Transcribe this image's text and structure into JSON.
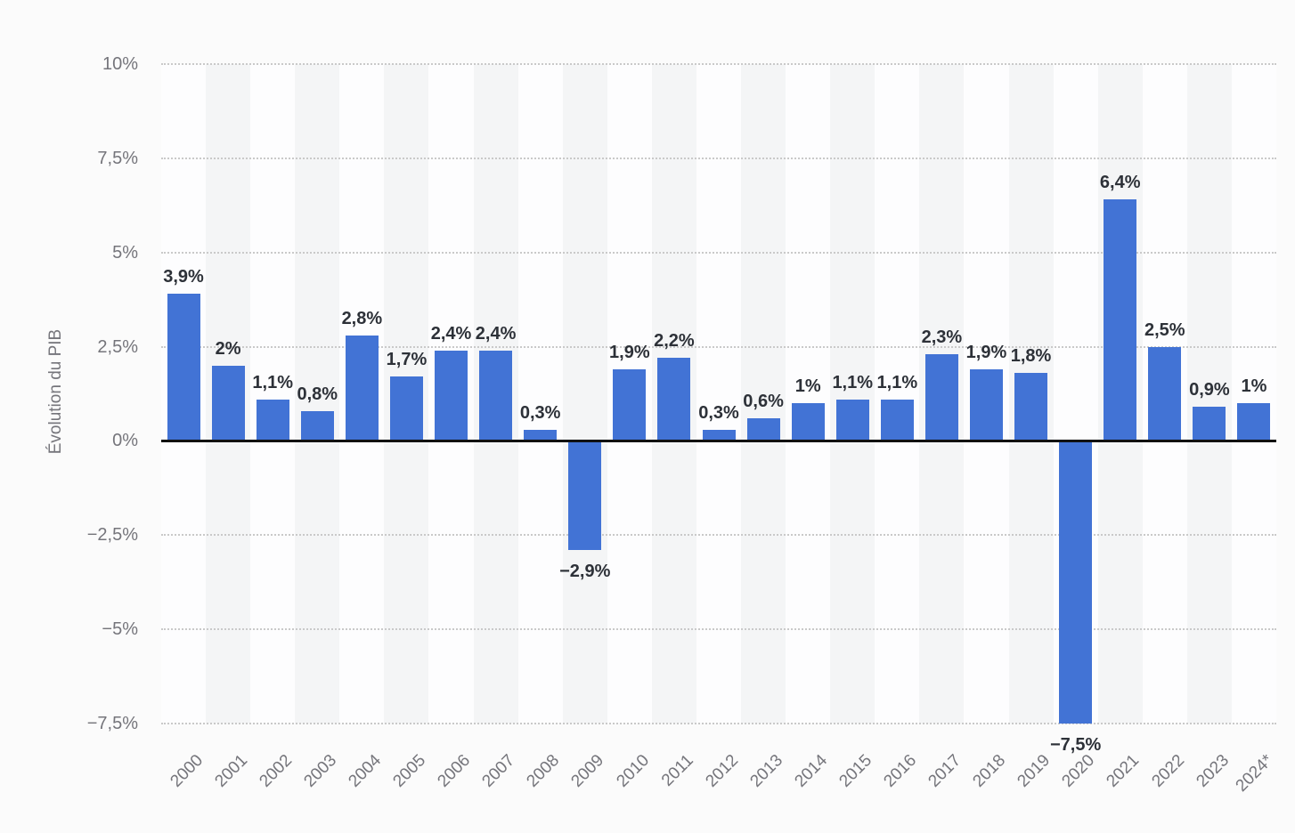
{
  "chart_data": {
    "type": "bar",
    "title": "",
    "xlabel": "",
    "ylabel": "Évolution du PIB",
    "categories": [
      "2000",
      "2001",
      "2002",
      "2003",
      "2004",
      "2005",
      "2006",
      "2007",
      "2008",
      "2009",
      "2010",
      "2011",
      "2012",
      "2013",
      "2014",
      "2015",
      "2016",
      "2017",
      "2018",
      "2019",
      "2020",
      "2021",
      "2022",
      "2023",
      "2024*"
    ],
    "values": [
      3.9,
      2,
      1.1,
      0.8,
      2.8,
      1.7,
      2.4,
      2.4,
      0.3,
      -2.9,
      1.9,
      2.2,
      0.3,
      0.6,
      1,
      1.1,
      1.1,
      2.3,
      1.9,
      1.8,
      -7.5,
      6.4,
      2.5,
      0.9,
      1
    ],
    "value_labels": [
      "3,9%",
      "2%",
      "1,1%",
      "0,8%",
      "2,8%",
      "1,7%",
      "2,4%",
      "2,4%",
      "0,3%",
      "−2,9%",
      "1,9%",
      "2,2%",
      "0,3%",
      "0,6%",
      "1%",
      "1,1%",
      "1,1%",
      "2,3%",
      "1,9%",
      "1,8%",
      "−7,5%",
      "6,4%",
      "2,5%",
      "0,9%",
      "1%"
    ],
    "y_ticks": [
      {
        "value": 10,
        "label": "10%"
      },
      {
        "value": 7.5,
        "label": "7,5%"
      },
      {
        "value": 5,
        "label": "5%"
      },
      {
        "value": 2.5,
        "label": "2,5%"
      },
      {
        "value": 0,
        "label": "0%"
      },
      {
        "value": -2.5,
        "label": "−2,5%"
      },
      {
        "value": -5,
        "label": "−5%"
      },
      {
        "value": -7.5,
        "label": "−7,5%"
      }
    ],
    "ylim": [
      -7.5,
      10
    ],
    "grid": "horizontal-dotted",
    "legend": "none",
    "colors": {
      "bar": "#4273d5",
      "value_label": "#2d3138",
      "tick_label": "#75757b",
      "gridline": "#c9c9c9",
      "baseline": "#111111",
      "band_shaded": "#f4f5f6",
      "band_plain": "#fdfdfe",
      "background": "#fbfbfb"
    }
  }
}
